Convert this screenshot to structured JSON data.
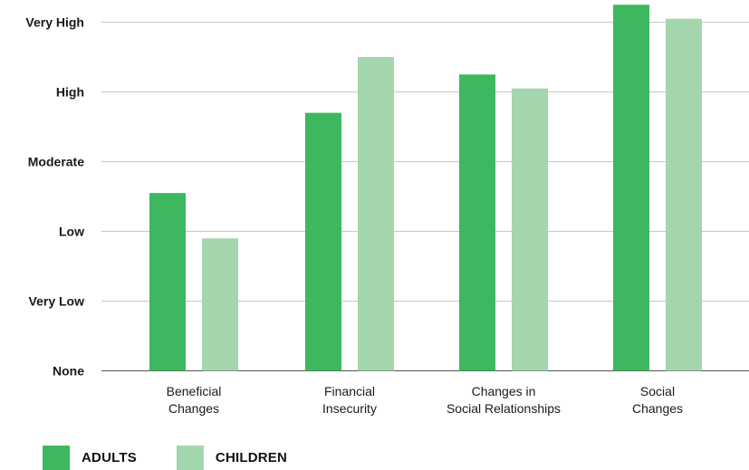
{
  "chart_data": {
    "type": "bar",
    "categories": [
      [
        "Beneficial",
        "Changes"
      ],
      [
        "Financial",
        "Insecurity"
      ],
      [
        "Changes in",
        "Social Relationships"
      ],
      [
        "Social",
        "Changes"
      ]
    ],
    "y_levels": [
      "None",
      "Very Low",
      "Low",
      "Moderate",
      "High",
      "Very High"
    ],
    "ylim": [
      0,
      5
    ],
    "series": [
      {
        "name": "ADULTS",
        "color": "#3db85e",
        "values": [
          2.55,
          3.7,
          4.25,
          5.25
        ]
      },
      {
        "name": "CHILDREN",
        "color": "#a3d6ad",
        "values": [
          1.9,
          4.5,
          4.05,
          5.05
        ]
      }
    ],
    "grid": true,
    "legend_position": "bottom-left"
  }
}
